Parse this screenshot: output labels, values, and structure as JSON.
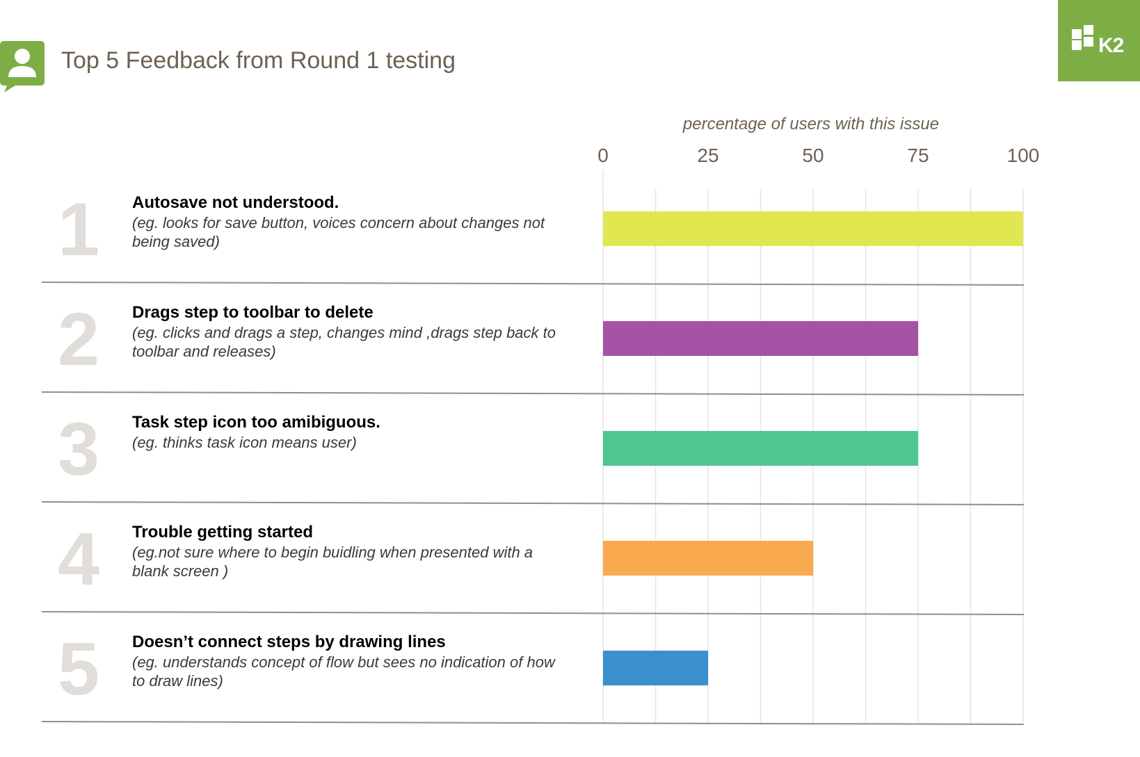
{
  "header": {
    "title": "Top 5 Feedback from Round 1 testing",
    "icon": "user-speech-bubble-icon",
    "logo_text": "K2",
    "brand_color": "#7ead45"
  },
  "chart_data": {
    "type": "bar",
    "orientation": "horizontal",
    "xlabel": "percentage of users with this issue",
    "xlim": [
      0,
      100
    ],
    "xticks": [
      "0",
      "25",
      "50",
      "75",
      "100"
    ],
    "grid": true,
    "legend": "none",
    "rows": [
      {
        "rank": "1",
        "title": "Autosave not understood.",
        "desc": "(eg. looks for save button, voices concern about changes not being saved)",
        "value": 100,
        "color": "#e1e751"
      },
      {
        "rank": "2",
        "title": "Drags step to toolbar to delete",
        "desc": "(eg. clicks and drags a step, changes mind ,drags step back to toolbar and releases)",
        "value": 75,
        "color": "#a652a6"
      },
      {
        "rank": "3",
        "title": "Task step icon too amibiguous.",
        "desc": "(eg. thinks task icon means user)",
        "value": 75,
        "color": "#4dc78f"
      },
      {
        "rank": "4",
        "title": "Trouble getting started",
        "desc": "(eg.not sure where to begin buidling when presented with a blank screen )",
        "value": 50,
        "color": "#f9a94e"
      },
      {
        "rank": "5",
        "title": "Doesn’t connect steps by drawing lines",
        "desc": "(eg. understands concept of flow but sees no indication of how to draw lines)",
        "value": 25,
        "color": "#3a8fcd"
      }
    ]
  }
}
